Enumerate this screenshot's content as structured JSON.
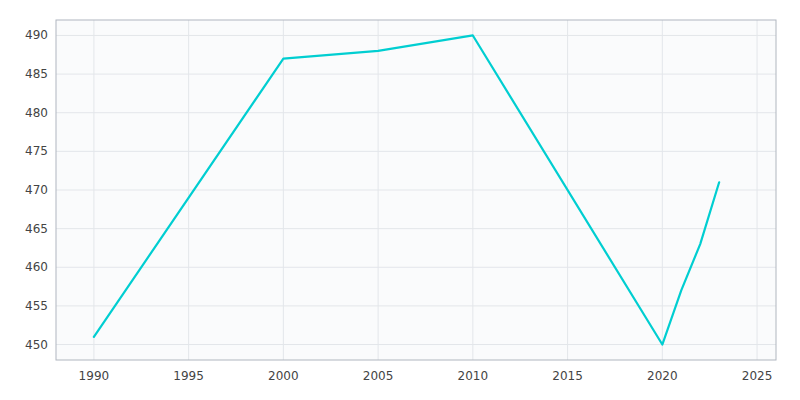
{
  "chart_data": {
    "type": "line",
    "x": [
      1990,
      2000,
      2005,
      2010,
      2020,
      2021,
      2022,
      2023
    ],
    "values": [
      451,
      487,
      488,
      490,
      450,
      457,
      463,
      471
    ],
    "color": "#00CED1",
    "xlim": [
      1988,
      2026
    ],
    "ylim": [
      448,
      492
    ],
    "xticks": [
      1990,
      1995,
      2000,
      2005,
      2010,
      2015,
      2020,
      2025
    ],
    "yticks": [
      450,
      455,
      460,
      465,
      470,
      475,
      480,
      485,
      490
    ],
    "grid": true
  }
}
